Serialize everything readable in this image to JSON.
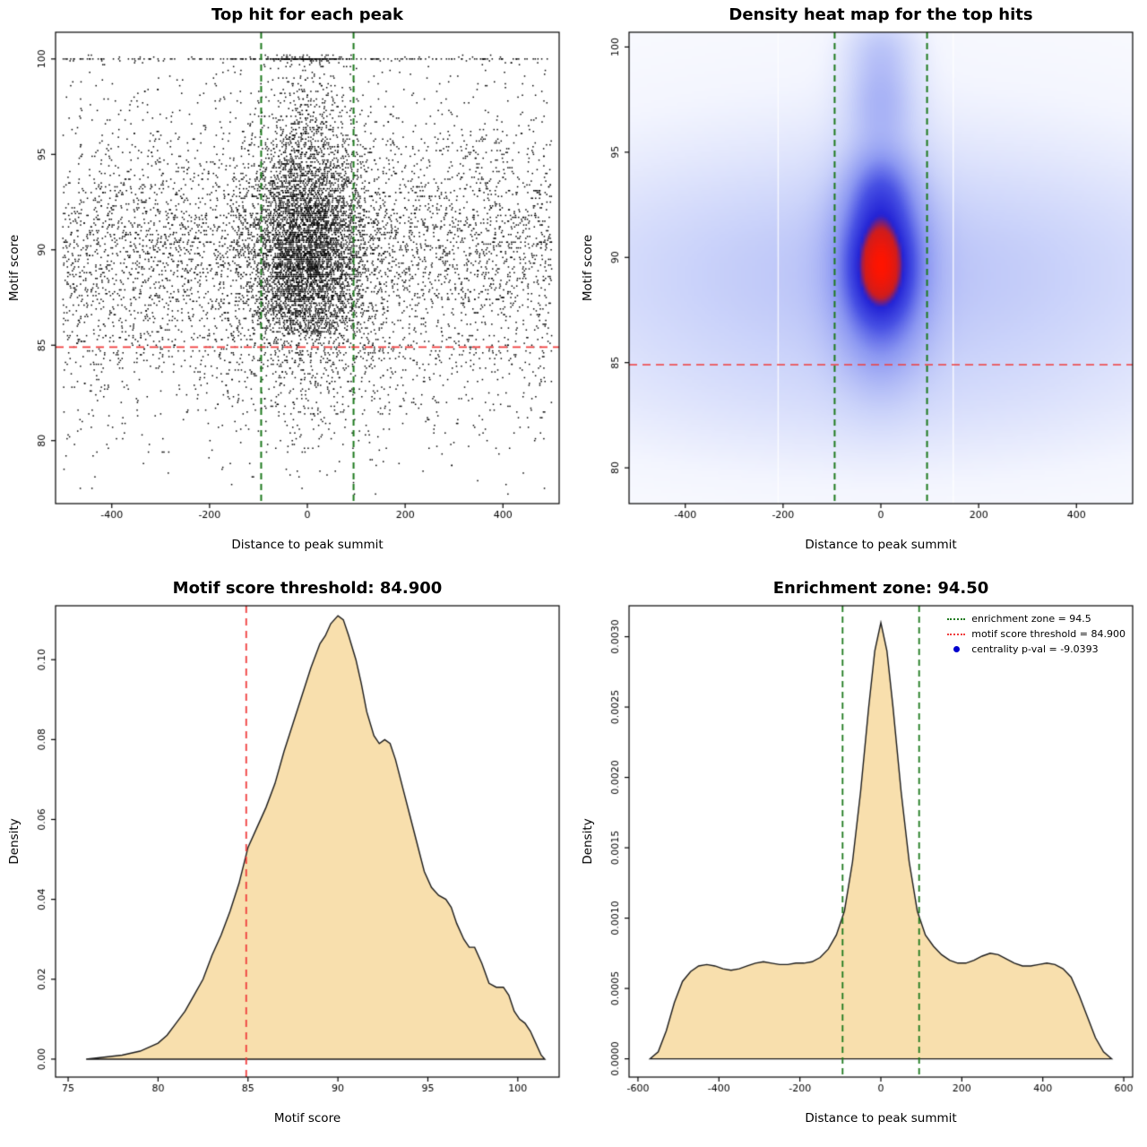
{
  "chart_data": [
    {
      "type": "scatter",
      "title": "Top hit for each peak",
      "xlabel": "Distance to peak summit",
      "ylabel": "Motif score",
      "xlim": [
        -515,
        515
      ],
      "ylim": [
        76.7,
        101.4
      ],
      "xticks": [
        -400,
        -200,
        0,
        200,
        400
      ],
      "xtick_labels": [
        "-400",
        "-200",
        "0",
        "200",
        "400"
      ],
      "yticks": [
        80,
        85,
        90,
        95,
        100
      ],
      "ytick_labels": [
        "80",
        "85",
        "90",
        "95",
        "100"
      ],
      "n_points": 11000,
      "point_color": "#000000",
      "enrichment_zone": [
        -94.5,
        94.5
      ],
      "score_threshold": 84.9,
      "zone_color": "#1e7a1e",
      "threshold_color": "#f03c3c",
      "gen": {
        "y_mixture": [
          {
            "mean": 89.8,
            "sd": 2.9,
            "w": 0.8
          },
          {
            "mean": 95.0,
            "sd": 3.3,
            "w": 0.13
          },
          {
            "mean": 83.0,
            "sd": 2.5,
            "w": 0.07
          }
        ],
        "top_row_frac": 0.025,
        "top_value": 100,
        "clip": [
          77.0,
          100.2
        ],
        "central_mid": {
          "p": 0.55,
          "sd": 60
        },
        "central_high": {
          "p": 0.5,
          "sd": 55
        },
        "central_low": {
          "p": 0.28,
          "sd": 95
        }
      }
    },
    {
      "type": "heatmap",
      "title": "Density heat map for the top hits",
      "xlabel": "Distance to peak summit",
      "ylabel": "Motif score",
      "xlim": [
        -515,
        515
      ],
      "ylim": [
        78.3,
        100.7
      ],
      "xticks": [
        -400,
        -200,
        0,
        200,
        400
      ],
      "xtick_labels": [
        "-400",
        "-200",
        "0",
        "200",
        "400"
      ],
      "yticks": [
        80,
        85,
        90,
        95,
        100
      ],
      "ytick_labels": [
        "80",
        "85",
        "90",
        "95",
        "100"
      ],
      "enrichment_zone": [
        -94.5,
        94.5
      ],
      "score_threshold": 84.9,
      "zone_color": "#1e7a1e",
      "threshold_color": "#f03c3c",
      "components": [
        {
          "x": 0,
          "y": 89.3,
          "sx": 480,
          "sy": 3.6,
          "w": 0.36
        },
        {
          "x": 0,
          "y": 90.0,
          "sx": 620,
          "sy": 7.5,
          "w": 0.16
        },
        {
          "x": 0,
          "y": 89.7,
          "sx": 60,
          "sy": 3.1,
          "w": 1.55
        },
        {
          "x": 0,
          "y": 89.6,
          "sx": 38,
          "sy": 1.55,
          "w": 1.4
        },
        {
          "x": 0,
          "y": 93.2,
          "sx": 40,
          "sy": 1.3,
          "w": 0.55
        },
        {
          "x": 0,
          "y": 97.6,
          "sx": 48,
          "sy": 1.5,
          "w": 0.5
        },
        {
          "x": 0,
          "y": 100.1,
          "sx": 52,
          "sy": 1.1,
          "w": 0.3
        },
        {
          "x": 0,
          "y": 83.3,
          "sx": 460,
          "sy": 2.6,
          "w": 0.12
        }
      ],
      "gamma": 0.65,
      "colormap": {
        "positions": [
          0,
          0.1,
          0.24,
          0.45,
          0.62,
          0.78,
          0.86,
          1
        ],
        "colors": [
          "#ffffff",
          "#f3f5fe",
          "#ccd4fa",
          "#8c98f2",
          "#4750e4",
          "#2323d6",
          "#cf1d1d",
          "#ff1400"
        ]
      },
      "seams": [
        -210,
        148
      ]
    },
    {
      "type": "area",
      "title": "Motif score threshold: 84.900",
      "xlabel": "Motif score",
      "ylabel": "Density",
      "xlim": [
        74.3,
        102.3
      ],
      "ylim": [
        -0.0045,
        0.1135
      ],
      "xticks": [
        75,
        80,
        85,
        90,
        95,
        100
      ],
      "xtick_labels": [
        "75",
        "80",
        "85",
        "90",
        "95",
        "100"
      ],
      "yticks": [
        0,
        0.02,
        0.04,
        0.06,
        0.08,
        0.1
      ],
      "ytick_labels": [
        "0.00",
        "0.02",
        "0.04",
        "0.06",
        "0.08",
        "0.10"
      ],
      "fill_color": "#f8dfad",
      "line_color": "#1a1a1a",
      "vlines": [
        {
          "x": 84.9,
          "color": "#f03c3c",
          "dash": [
            8,
            6
          ]
        }
      ],
      "curve": [
        [
          76,
          0
        ],
        [
          77,
          0.0005
        ],
        [
          78,
          0.001
        ],
        [
          79,
          0.002
        ],
        [
          80,
          0.004
        ],
        [
          80.5,
          0.006
        ],
        [
          81,
          0.009
        ],
        [
          81.5,
          0.012
        ],
        [
          82,
          0.016
        ],
        [
          82.5,
          0.02
        ],
        [
          83,
          0.026
        ],
        [
          83.5,
          0.031
        ],
        [
          84,
          0.037
        ],
        [
          84.5,
          0.044
        ],
        [
          85,
          0.053
        ],
        [
          85.5,
          0.058
        ],
        [
          86,
          0.063
        ],
        [
          86.5,
          0.069
        ],
        [
          87,
          0.077
        ],
        [
          87.5,
          0.084
        ],
        [
          88,
          0.091
        ],
        [
          88.5,
          0.098
        ],
        [
          89,
          0.104
        ],
        [
          89.3,
          0.106
        ],
        [
          89.6,
          0.109
        ],
        [
          90,
          0.111
        ],
        [
          90.3,
          0.11
        ],
        [
          90.6,
          0.106
        ],
        [
          91,
          0.1
        ],
        [
          91.3,
          0.094
        ],
        [
          91.6,
          0.087
        ],
        [
          92,
          0.081
        ],
        [
          92.3,
          0.079
        ],
        [
          92.6,
          0.08
        ],
        [
          92.9,
          0.079
        ],
        [
          93.2,
          0.075
        ],
        [
          93.6,
          0.068
        ],
        [
          94,
          0.061
        ],
        [
          94.4,
          0.054
        ],
        [
          94.8,
          0.047
        ],
        [
          95.2,
          0.043
        ],
        [
          95.6,
          0.041
        ],
        [
          96,
          0.04
        ],
        [
          96.3,
          0.038
        ],
        [
          96.6,
          0.034
        ],
        [
          97,
          0.03
        ],
        [
          97.3,
          0.028
        ],
        [
          97.6,
          0.028
        ],
        [
          98,
          0.024
        ],
        [
          98.4,
          0.019
        ],
        [
          98.8,
          0.018
        ],
        [
          99.2,
          0.018
        ],
        [
          99.5,
          0.016
        ],
        [
          99.8,
          0.012
        ],
        [
          100.1,
          0.01
        ],
        [
          100.4,
          0.009
        ],
        [
          100.7,
          0.007
        ],
        [
          101,
          0.004
        ],
        [
          101.3,
          0.001
        ],
        [
          101.5,
          0
        ]
      ]
    },
    {
      "type": "area",
      "title": "Enrichment zone: 94.50",
      "xlabel": "Distance to peak summit",
      "ylabel": "Density",
      "xlim": [
        -622,
        622
      ],
      "ylim": [
        -0.00013,
        0.00322
      ],
      "xticks": [
        -600,
        -400,
        -200,
        0,
        200,
        400,
        600
      ],
      "xtick_labels": [
        "-600",
        "-400",
        "-200",
        "0",
        "200",
        "400",
        "600"
      ],
      "yticks": [
        0,
        0.0005,
        0.001,
        0.0015,
        0.002,
        0.0025,
        0.003
      ],
      "ytick_labels": [
        "0.0000",
        "0.0005",
        "0.0010",
        "0.0015",
        "0.0020",
        "0.0025",
        "0.0030"
      ],
      "fill_color": "#f8dfad",
      "line_color": "#1a1a1a",
      "vlines": [
        {
          "x": -94.5,
          "color": "#1e7a1e",
          "dash": [
            7,
            5
          ]
        },
        {
          "x": 94.5,
          "color": "#1e7a1e",
          "dash": [
            7,
            5
          ]
        }
      ],
      "curve": [
        [
          -570,
          0
        ],
        [
          -550,
          5e-05
        ],
        [
          -530,
          0.0002
        ],
        [
          -510,
          0.0004
        ],
        [
          -490,
          0.00055
        ],
        [
          -470,
          0.00062
        ],
        [
          -450,
          0.00066
        ],
        [
          -430,
          0.00067
        ],
        [
          -410,
          0.00066
        ],
        [
          -390,
          0.00064
        ],
        [
          -370,
          0.00063
        ],
        [
          -350,
          0.00064
        ],
        [
          -330,
          0.00066
        ],
        [
          -310,
          0.00068
        ],
        [
          -290,
          0.00069
        ],
        [
          -270,
          0.00068
        ],
        [
          -250,
          0.00067
        ],
        [
          -230,
          0.00067
        ],
        [
          -210,
          0.00068
        ],
        [
          -190,
          0.00068
        ],
        [
          -170,
          0.00069
        ],
        [
          -150,
          0.00072
        ],
        [
          -130,
          0.00078
        ],
        [
          -110,
          0.00088
        ],
        [
          -90,
          0.00105
        ],
        [
          -70,
          0.0014
        ],
        [
          -50,
          0.0019
        ],
        [
          -30,
          0.0025
        ],
        [
          -15,
          0.0029
        ],
        [
          0,
          0.0031
        ],
        [
          15,
          0.0029
        ],
        [
          30,
          0.0025
        ],
        [
          50,
          0.0019
        ],
        [
          70,
          0.0014
        ],
        [
          90,
          0.00105
        ],
        [
          110,
          0.00088
        ],
        [
          130,
          0.0008
        ],
        [
          150,
          0.00074
        ],
        [
          170,
          0.0007
        ],
        [
          190,
          0.00068
        ],
        [
          210,
          0.00068
        ],
        [
          230,
          0.0007
        ],
        [
          250,
          0.00073
        ],
        [
          270,
          0.00075
        ],
        [
          290,
          0.00074
        ],
        [
          310,
          0.00071
        ],
        [
          330,
          0.00068
        ],
        [
          350,
          0.00066
        ],
        [
          370,
          0.00066
        ],
        [
          390,
          0.00067
        ],
        [
          410,
          0.00068
        ],
        [
          430,
          0.00067
        ],
        [
          450,
          0.00064
        ],
        [
          470,
          0.00058
        ],
        [
          490,
          0.00045
        ],
        [
          510,
          0.0003
        ],
        [
          530,
          0.00015
        ],
        [
          550,
          5e-05
        ],
        [
          570,
          0
        ]
      ],
      "legend": [
        {
          "label": "enrichment zone = 94.5",
          "color": "#1e7a1e",
          "marker": "dotted-line"
        },
        {
          "label": "motif score threshold = 84.900",
          "color": "#f03c3c",
          "marker": "dotted-line"
        },
        {
          "label": "centrality p-val = -9.0393",
          "color": "#0000cd",
          "marker": "dot"
        }
      ]
    }
  ]
}
